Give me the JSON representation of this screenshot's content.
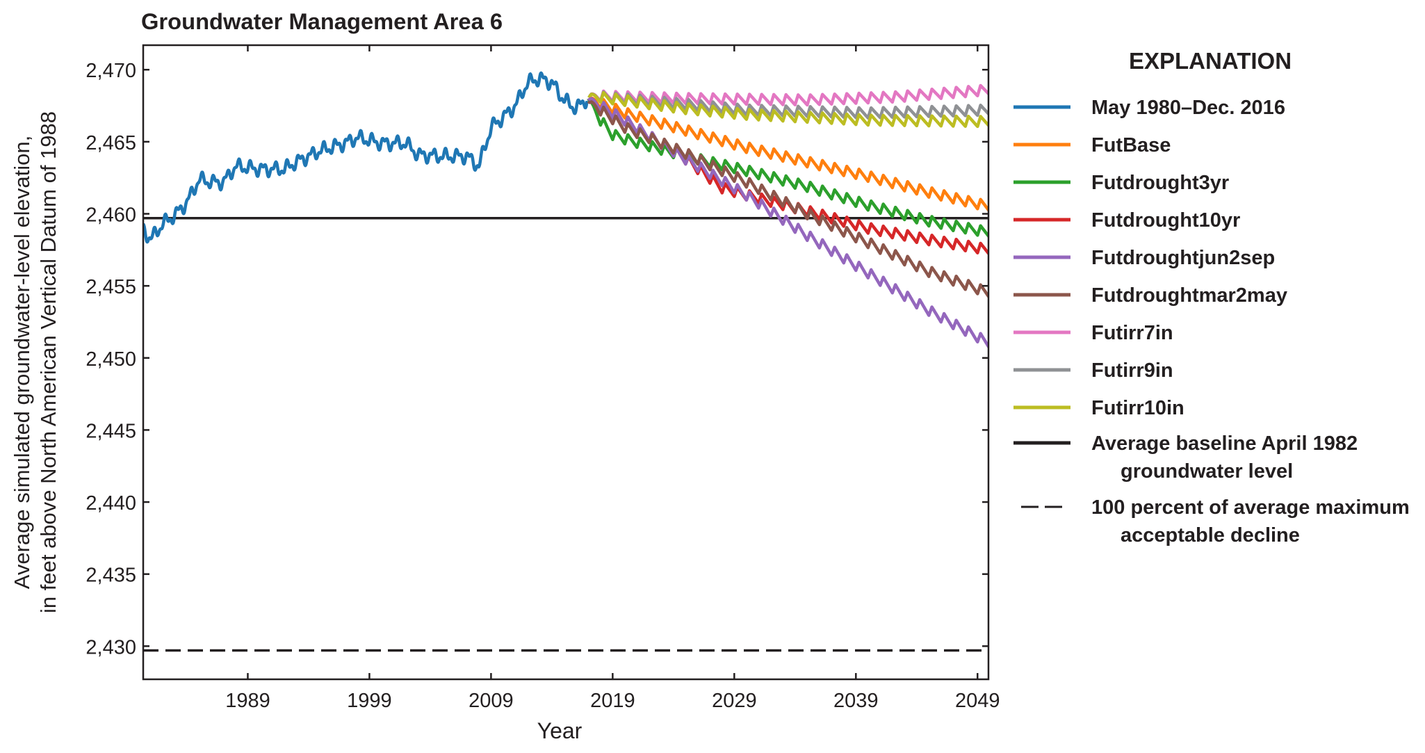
{
  "chart_data": {
    "type": "line",
    "title": "Groundwater Management Area 6",
    "xlabel": "Year",
    "ylabel": [
      "Average simulated groundwater-level elevation,",
      "in feet above North American Vertical Datum of 1988"
    ],
    "xlim": [
      1980.4,
      2049.9
    ],
    "ylim": [
      2427.7,
      2471.7
    ],
    "xticks": [
      1989,
      1999,
      2009,
      2019,
      2029,
      2039,
      2049
    ],
    "xtick_labels": [
      "1989",
      "1999",
      "2009",
      "2019",
      "2029",
      "2039",
      "2049"
    ],
    "yticks": [
      2430,
      2435,
      2440,
      2445,
      2450,
      2455,
      2460,
      2465,
      2470
    ],
    "ytick_labels": [
      "2,430",
      "2,435",
      "2,440",
      "2,445",
      "2,450",
      "2,455",
      "2,460",
      "2,465",
      "2,470"
    ],
    "grid": false,
    "legend": {
      "title": "EXPLANATION",
      "placement": "right, outside plot"
    },
    "seasonal_amplitude_ft": 0.7,
    "series": [
      {
        "name": "May 1980–Dec. 2016",
        "color": "#1f77b4",
        "x": [
          1980.4,
          1981,
          1982,
          1983,
          1984,
          1985,
          1986,
          1987,
          1988,
          1990,
          1992,
          1993,
          1995,
          1997,
          1998,
          2000,
          2002,
          2003,
          2005,
          2007,
          2008,
          2009,
          2010,
          2011,
          2012,
          2013,
          2014,
          2015,
          2016,
          2016.9
        ],
        "y": [
          2459.0,
          2458.2,
          2459.3,
          2459.9,
          2460.8,
          2462.4,
          2462.2,
          2462.2,
          2463.3,
          2463.1,
          2463.1,
          2463.6,
          2464.4,
          2464.9,
          2465.3,
          2464.9,
          2464.9,
          2464.1,
          2464.0,
          2464.0,
          2463.3,
          2466.0,
          2466.7,
          2467.5,
          2469.1,
          2469.4,
          2469.1,
          2467.9,
          2467.3,
          2468.0
        ]
      },
      {
        "name": "FutBase",
        "color": "#ff7f0e",
        "x": [
          2017,
          2020,
          2025,
          2030,
          2035,
          2040,
          2045,
          2050
        ],
        "y": [
          2468.0,
          2467.0,
          2465.8,
          2464.6,
          2463.6,
          2462.6,
          2461.5,
          2460.5
        ]
      },
      {
        "name": "Futdrought3yr",
        "color": "#2ca02c",
        "x": [
          2017,
          2018,
          2019,
          2020,
          2025,
          2030,
          2035,
          2040,
          2045,
          2050
        ],
        "y": [
          2468.0,
          2466.5,
          2465.5,
          2465.2,
          2464.0,
          2463.0,
          2461.9,
          2460.6,
          2459.5,
          2458.7
        ]
      },
      {
        "name": "Futdrought10yr",
        "color": "#d62728",
        "x": [
          2017,
          2020,
          2025,
          2028,
          2030,
          2035,
          2040,
          2045,
          2050
        ],
        "y": [
          2468.0,
          2466.5,
          2463.8,
          2461.8,
          2461.3,
          2460.2,
          2459.0,
          2458.2,
          2457.5
        ]
      },
      {
        "name": "Futdroughtjun2sep",
        "color": "#9467bd",
        "x": [
          2017,
          2020,
          2025,
          2030,
          2035,
          2040,
          2045,
          2050
        ],
        "y": [
          2468.0,
          2466.5,
          2463.8,
          2461.3,
          2458.5,
          2455.9,
          2453.3,
          2451.0
        ]
      },
      {
        "name": "Futdroughtmar2may",
        "color": "#8c564b",
        "x": [
          2017,
          2020,
          2025,
          2030,
          2035,
          2040,
          2045,
          2050
        ],
        "y": [
          2467.8,
          2466.0,
          2464.2,
          2462.2,
          2460.0,
          2458.0,
          2456.0,
          2454.5
        ]
      },
      {
        "name": "Futirr7in",
        "color": "#e377c2",
        "x": [
          2017,
          2025,
          2035,
          2042,
          2050
        ],
        "y": [
          2468.2,
          2468.0,
          2467.9,
          2468.1,
          2468.6
        ]
      },
      {
        "name": "Futirr9in",
        "color": "#8f9194",
        "x": [
          2017,
          2025,
          2030,
          2040,
          2050
        ],
        "y": [
          2468.2,
          2467.6,
          2467.2,
          2467.0,
          2467.2
        ]
      },
      {
        "name": "Futirr10in",
        "color": "#bcbd22",
        "x": [
          2017,
          2025,
          2030,
          2040,
          2050
        ],
        "y": [
          2468.2,
          2467.3,
          2466.9,
          2466.5,
          2466.4
        ]
      }
    ],
    "reference_lines": [
      {
        "name_lines": [
          "Average baseline April 1982",
          "groundwater level"
        ],
        "y": 2459.7,
        "style": "solid",
        "color": "#231f20"
      },
      {
        "name_lines": [
          "100 percent of average maximum",
          "acceptable decline"
        ],
        "y": 2429.7,
        "style": "dashed",
        "color": "#231f20"
      }
    ]
  }
}
